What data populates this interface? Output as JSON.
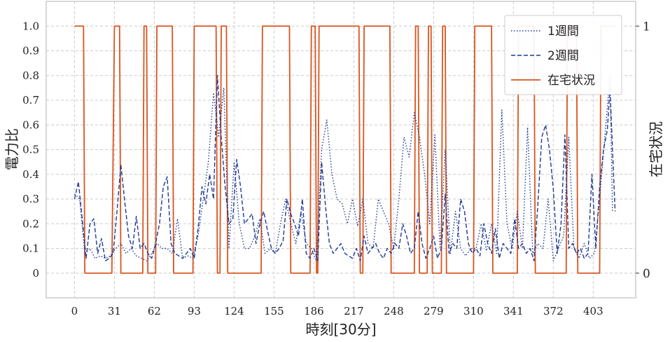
{
  "chart_data": {
    "type": "line",
    "xlabel": "時刻[30分]",
    "ylabel": "電力比",
    "y2label": "在宅状況",
    "xlim": [
      -22,
      436
    ],
    "ylim": [
      -0.1,
      1.1
    ],
    "y2lim": [
      -0.1,
      1.1
    ],
    "x_ticks": [
      0,
      31,
      62,
      93,
      124,
      155,
      186,
      217,
      248,
      279,
      310,
      341,
      372,
      403
    ],
    "y_ticks": [
      0,
      0.1,
      0.2,
      0.3,
      0.4,
      0.5,
      0.6,
      0.7,
      0.8,
      0.9,
      1.0
    ],
    "y_tick_labels": [
      "0",
      "0.1",
      "0.2",
      "0.3",
      "0.4",
      "0.5",
      "0.6",
      "0.7",
      "0.8",
      "0.9",
      "1.0"
    ],
    "y2_ticks": [
      0,
      1
    ],
    "y2_tick_labels": [
      "0",
      "1"
    ],
    "grid": true,
    "legend_position": "top-right",
    "colors": {
      "week1": "#1f3a93",
      "week2": "#1f3a93",
      "occupancy": "#d9541e",
      "grid": "#cccccc",
      "axes": "#b0b0b0"
    },
    "series": [
      {
        "name": "1週間",
        "style": "dotted",
        "x": [
          0,
          4,
          8,
          12,
          16,
          20,
          24,
          28,
          32,
          36,
          40,
          44,
          48,
          52,
          56,
          60,
          64,
          68,
          72,
          76,
          80,
          84,
          88,
          92,
          96,
          100,
          104,
          108,
          112,
          116,
          120,
          124,
          128,
          132,
          136,
          140,
          144,
          148,
          152,
          156,
          160,
          164,
          168,
          172,
          176,
          180,
          184,
          188,
          192,
          196,
          200,
          204,
          208,
          212,
          216,
          220,
          224,
          228,
          232,
          236,
          240,
          244,
          248,
          252,
          256,
          260,
          264,
          268,
          272,
          276,
          280,
          284,
          288,
          292,
          296,
          300,
          304,
          308,
          312,
          316,
          320,
          324,
          328,
          332,
          336,
          340,
          344,
          348,
          352,
          356,
          360,
          364,
          368,
          372,
          376,
          380,
          384,
          388,
          392,
          396,
          400,
          404,
          408,
          412,
          416,
          418
        ],
        "values": [
          0.32,
          0.3,
          0.08,
          0.1,
          0.06,
          0.07,
          0.06,
          0.07,
          0.1,
          0.12,
          0.08,
          0.1,
          0.07,
          0.06,
          0.05,
          0.08,
          0.12,
          0.1,
          0.1,
          0.08,
          0.22,
          0.06,
          0.07,
          0.06,
          0.15,
          0.3,
          0.45,
          0.73,
          0.55,
          0.75,
          0.1,
          0.45,
          0.2,
          0.1,
          0.1,
          0.15,
          0.22,
          0.08,
          0.1,
          0.08,
          0.2,
          0.3,
          0.2,
          0.12,
          0.25,
          0.12,
          0.1,
          0.05,
          0.5,
          0.62,
          0.4,
          0.3,
          0.28,
          0.2,
          0.3,
          0.19,
          0.3,
          0.12,
          0.1,
          0.3,
          0.25,
          0.2,
          0.1,
          0.3,
          0.55,
          0.47,
          0.65,
          0.55,
          0.4,
          0.2,
          0.56,
          0.1,
          0.5,
          0.08,
          0.25,
          0.1,
          0.07,
          0.1,
          0.1,
          0.2,
          0.09,
          0.2,
          0.08,
          0.66,
          0.2,
          0.1,
          0.25,
          0.1,
          0.59,
          0.08,
          0.12,
          0.1,
          0.3,
          0.05,
          0.1,
          0.15,
          0.55,
          0.1,
          0.06,
          0.12,
          0.06,
          0.08,
          0.3,
          0.55,
          0.8,
          0.25
        ]
      },
      {
        "name": "2週間",
        "style": "dashed",
        "x": [
          0,
          3,
          6,
          9,
          12,
          15,
          18,
          21,
          24,
          27,
          30,
          33,
          36,
          39,
          42,
          45,
          48,
          51,
          54,
          57,
          60,
          63,
          66,
          69,
          72,
          75,
          78,
          81,
          84,
          87,
          90,
          93,
          96,
          99,
          102,
          105,
          108,
          111,
          114,
          117,
          120,
          123,
          126,
          129,
          132,
          135,
          138,
          141,
          144,
          147,
          150,
          153,
          156,
          159,
          162,
          165,
          168,
          171,
          174,
          177,
          180,
          183,
          186,
          189,
          192,
          195,
          198,
          201,
          204,
          207,
          210,
          213,
          216,
          219,
          222,
          225,
          228,
          231,
          234,
          237,
          240,
          243,
          246,
          249,
          252,
          255,
          258,
          261,
          264,
          267,
          270,
          273,
          276,
          279,
          282,
          285,
          288,
          291,
          294,
          297,
          300,
          303,
          306,
          309,
          312,
          315,
          318,
          321,
          324,
          327,
          330,
          333,
          336,
          339,
          342,
          345,
          348,
          351,
          354,
          357,
          360,
          363,
          366,
          369,
          372,
          375,
          378,
          381,
          384,
          387,
          390,
          393,
          396,
          399,
          402,
          405,
          408,
          411,
          414,
          416,
          418,
          420
        ],
        "values": [
          0.3,
          0.37,
          0.22,
          0.06,
          0.2,
          0.22,
          0.08,
          0.14,
          0.05,
          0.06,
          0.08,
          0.25,
          0.44,
          0.29,
          0.15,
          0.1,
          0.23,
          0.1,
          0.12,
          0.08,
          0.06,
          0.12,
          0.2,
          0.35,
          0.39,
          0.12,
          0.08,
          0.07,
          0.06,
          0.08,
          0.1,
          0.06,
          0.18,
          0.35,
          0.28,
          0.4,
          0.3,
          0.8,
          0.55,
          0.35,
          0.2,
          0.22,
          0.46,
          0.35,
          0.2,
          0.22,
          0.24,
          0.12,
          0.2,
          0.25,
          0.17,
          0.1,
          0.08,
          0.1,
          0.13,
          0.3,
          0.24,
          0.2,
          0.15,
          0.3,
          0.08,
          0.06,
          0.1,
          0.05,
          0.45,
          0.27,
          0.12,
          0.08,
          0.1,
          0.12,
          0.08,
          0.07,
          0.06,
          0.1,
          0.05,
          0.15,
          0.08,
          0.1,
          0.12,
          0.08,
          0.06,
          0.1,
          0.08,
          0.12,
          0.1,
          0.2,
          0.15,
          0.08,
          0.1,
          0.25,
          0.12,
          0.06,
          0.1,
          0.15,
          0.06,
          0.1,
          0.32,
          0.08,
          0.12,
          0.1,
          0.3,
          0.25,
          0.12,
          0.08,
          0.1,
          0.07,
          0.2,
          0.12,
          0.08,
          0.18,
          0.06,
          0.12,
          0.1,
          0.08,
          0.22,
          0.1,
          0.12,
          0.08,
          0.1,
          0.05,
          0.28,
          0.55,
          0.6,
          0.5,
          0.34,
          0.08,
          0.2,
          0.56,
          0.1,
          0.12,
          0.08,
          0.1,
          0.06,
          0.08,
          0.4,
          0.1,
          0.35,
          0.5,
          0.58,
          0.75,
          0.5,
          0.25
        ]
      },
      {
        "name": "在宅状況",
        "style": "solid",
        "axis": "right",
        "x": [
          0,
          7,
          8,
          29,
          31,
          35,
          36,
          53,
          54,
          56,
          57,
          63,
          64,
          76,
          77,
          92,
          93,
          110,
          111,
          113,
          114,
          118,
          119,
          145,
          146,
          167,
          168,
          183,
          184,
          187,
          188,
          189,
          190,
          221,
          222,
          224,
          225,
          245,
          246,
          264,
          265,
          267,
          268,
          274,
          275,
          277,
          278,
          285,
          286,
          288,
          289,
          310,
          311,
          324,
          325,
          344,
          345,
          357,
          358,
          382,
          383,
          390,
          391,
          408,
          409,
          420
        ],
        "values": [
          1,
          1,
          0,
          0,
          1,
          1,
          0,
          0,
          1,
          1,
          0,
          0,
          1,
          1,
          0,
          0,
          1,
          1,
          0,
          0,
          1,
          1,
          0,
          0,
          1,
          1,
          0,
          0,
          1,
          1,
          0,
          0,
          1,
          1,
          0,
          0,
          1,
          1,
          0,
          0,
          1,
          1,
          0,
          0,
          1,
          1,
          0,
          0,
          1,
          1,
          0,
          0,
          1,
          1,
          0,
          0,
          1,
          1,
          0,
          0,
          1,
          1,
          0,
          0,
          1,
          1
        ]
      }
    ]
  }
}
